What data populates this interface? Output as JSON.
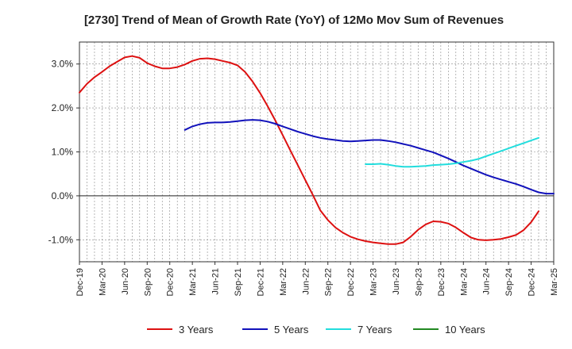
{
  "chart_data": {
    "type": "line",
    "title": "[2730]  Trend of Mean of Growth Rate (YoY) of 12Mo Mov Sum of Revenues",
    "xlabel": "",
    "ylabel": "",
    "ylim": [
      -1.5,
      3.5
    ],
    "y_ticks": [
      {
        "value": 3.0,
        "label": "3.0%"
      },
      {
        "value": 2.0,
        "label": "2.0%"
      },
      {
        "value": 1.0,
        "label": "1.0%"
      },
      {
        "value": 0.0,
        "label": "0.0%"
      },
      {
        "value": -1.0,
        "label": "-1.0%"
      }
    ],
    "x_tick_labels": [
      "Dec-19",
      "Mar-20",
      "Jun-20",
      "Sep-20",
      "Dec-20",
      "Mar-21",
      "Jun-21",
      "Sep-21",
      "Dec-21",
      "Mar-22",
      "Jun-22",
      "Sep-22",
      "Dec-22",
      "Mar-23",
      "Jun-23",
      "Sep-23",
      "Dec-23",
      "Mar-24",
      "Jun-24",
      "Sep-24",
      "Dec-24",
      "Mar-25"
    ],
    "x_start": "Dec-19",
    "n_months": 63,
    "grid": true,
    "legend_position": "bottom",
    "series": [
      {
        "name": "3 Years",
        "color": "#dd1111",
        "start_month_index": 0,
        "values": [
          2.35,
          2.55,
          2.7,
          2.82,
          2.95,
          3.05,
          3.15,
          3.18,
          3.14,
          3.02,
          2.95,
          2.9,
          2.9,
          2.93,
          2.99,
          3.07,
          3.12,
          3.13,
          3.11,
          3.07,
          3.03,
          2.97,
          2.82,
          2.6,
          2.34,
          2.04,
          1.72,
          1.38,
          1.04,
          0.7,
          0.36,
          0.02,
          -0.33,
          -0.55,
          -0.72,
          -0.84,
          -0.93,
          -0.99,
          -1.03,
          -1.06,
          -1.08,
          -1.1,
          -1.1,
          -1.06,
          -0.93,
          -0.77,
          -0.65,
          -0.58,
          -0.59,
          -0.63,
          -0.72,
          -0.84,
          -0.95,
          -1.0,
          -1.01,
          -1.0,
          -0.98,
          -0.94,
          -0.89,
          -0.78,
          -0.6,
          -0.35
        ]
      },
      {
        "name": "5 Years",
        "color": "#1111bb",
        "start_month_index": 14,
        "values": [
          1.5,
          1.58,
          1.63,
          1.66,
          1.67,
          1.67,
          1.68,
          1.7,
          1.72,
          1.73,
          1.72,
          1.69,
          1.64,
          1.58,
          1.52,
          1.46,
          1.41,
          1.36,
          1.32,
          1.29,
          1.27,
          1.25,
          1.24,
          1.25,
          1.26,
          1.27,
          1.27,
          1.25,
          1.22,
          1.18,
          1.14,
          1.09,
          1.04,
          0.99,
          0.92,
          0.85,
          0.77,
          0.69,
          0.62,
          0.55,
          0.48,
          0.42,
          0.37,
          0.32,
          0.27,
          0.21,
          0.14,
          0.08,
          0.05,
          0.05
        ]
      },
      {
        "name": "7 Years",
        "color": "#22dddd",
        "start_month_index": 38,
        "values": [
          0.72,
          0.72,
          0.73,
          0.71,
          0.68,
          0.66,
          0.66,
          0.67,
          0.68,
          0.7,
          0.71,
          0.72,
          0.74,
          0.77,
          0.8,
          0.84,
          0.9,
          0.96,
          1.02,
          1.08,
          1.14,
          1.2,
          1.26,
          1.32
        ]
      },
      {
        "name": "10 Years",
        "color": "#228822",
        "start_month_index": 0,
        "values": []
      }
    ]
  }
}
